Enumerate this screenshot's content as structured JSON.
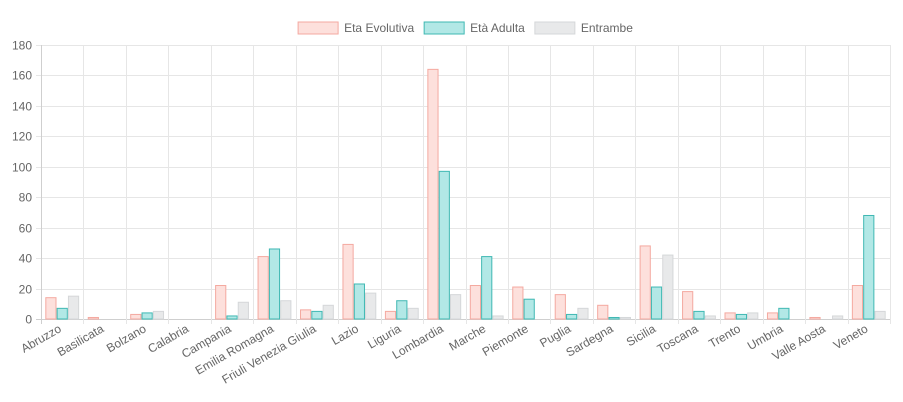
{
  "chart_data": {
    "type": "bar",
    "title": "",
    "xlabel": "",
    "ylabel": "",
    "ylim": [
      0,
      180
    ],
    "yticks": [
      0,
      20,
      40,
      60,
      80,
      100,
      120,
      140,
      160,
      180
    ],
    "grid": true,
    "legend_position": "top",
    "categories": [
      "Abruzzo",
      "Basilicata",
      "Bolzano",
      "Calabria",
      "Campania",
      "Emilia Romagna",
      "Friuli Venezia Giulia",
      "Lazio",
      "Liguria",
      "Lombardia",
      "Marche",
      "Piemonte",
      "Puglia",
      "Sardegna",
      "Sicilia",
      "Toscana",
      "Trento",
      "Umbria",
      "Valle Aosta",
      "Veneto"
    ],
    "series": [
      {
        "name": "Eta Evolutiva",
        "fill": "#fde0dc",
        "stroke": "#f4a9a0",
        "values": [
          14,
          1,
          3,
          0,
          22,
          41,
          6,
          49,
          5,
          164,
          22,
          21,
          16,
          9,
          48,
          18,
          4,
          4,
          1,
          22
        ]
      },
      {
        "name": "Età Adulta",
        "fill": "#b2e8e6",
        "stroke": "#3fb8b3",
        "values": [
          7,
          0,
          4,
          0,
          2,
          46,
          5,
          23,
          12,
          97,
          41,
          13,
          3,
          1,
          21,
          5,
          3,
          7,
          0,
          68
        ]
      },
      {
        "name": "Entrambe",
        "fill": "#e8e9ea",
        "stroke": "#d5d7d9",
        "values": [
          15,
          0,
          5,
          0,
          11,
          12,
          9,
          17,
          7,
          16,
          2,
          0,
          7,
          1,
          42,
          2,
          4,
          0,
          2,
          5
        ]
      }
    ]
  }
}
